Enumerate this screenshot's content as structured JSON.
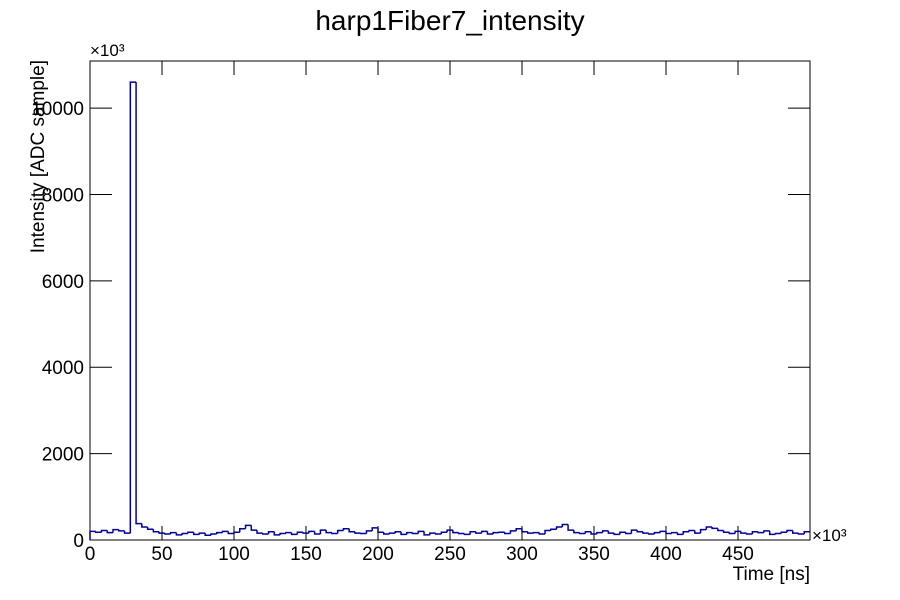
{
  "chart_data": {
    "type": "histogram",
    "title": "harp1Fiber7_intensity",
    "x_label": "Time [ns]",
    "y_label": "Intensity [ADC sample]",
    "x_multiplier": "×10³",
    "y_multiplier": "×10³",
    "color": "#000099",
    "xlim": [
      0,
      500
    ],
    "xticks": [
      0,
      50,
      100,
      150,
      200,
      250,
      300,
      350,
      400,
      450
    ],
    "ylim": [
      0,
      11090
    ],
    "yticks": [
      0,
      2000,
      4000,
      6000,
      8000,
      10000
    ],
    "bins": [
      0,
      4,
      8,
      12,
      16,
      20,
      24,
      28,
      32,
      36,
      40,
      44,
      48,
      52,
      56,
      60,
      64,
      68,
      72,
      76,
      80,
      84,
      88,
      92,
      96,
      100,
      104,
      108,
      112,
      116,
      120,
      124,
      128,
      132,
      136,
      140,
      144,
      148,
      152,
      156,
      160,
      164,
      168,
      172,
      176,
      180,
      184,
      188,
      192,
      196,
      200,
      204,
      208,
      212,
      216,
      220,
      224,
      228,
      232,
      236,
      240,
      244,
      248,
      252,
      256,
      260,
      264,
      268,
      272,
      276,
      280,
      284,
      288,
      292,
      296,
      300,
      304,
      308,
      312,
      316,
      320,
      324,
      328,
      332,
      336,
      340,
      344,
      348,
      352,
      356,
      360,
      364,
      368,
      372,
      376,
      380,
      384,
      388,
      392,
      396,
      400,
      404,
      408,
      412,
      416,
      420,
      424,
      428,
      432,
      436,
      440,
      444,
      448,
      452,
      456,
      460,
      464,
      468,
      472,
      476,
      480,
      484,
      488,
      492,
      496,
      500
    ],
    "counts": [
      200,
      180,
      220,
      170,
      240,
      210,
      160,
      10600,
      380,
      300,
      250,
      190,
      160,
      140,
      170,
      120,
      150,
      180,
      130,
      160,
      110,
      140,
      170,
      200,
      150,
      180,
      260,
      340,
      230,
      160,
      140,
      190,
      120,
      150,
      170,
      130,
      180,
      160,
      200,
      140,
      230,
      170,
      150,
      220,
      260,
      190,
      160,
      150,
      210,
      280,
      180,
      140,
      160,
      190,
      130,
      170,
      150,
      200,
      120,
      160,
      140,
      180,
      230,
      170,
      150,
      130,
      190,
      160,
      200,
      140,
      170,
      180,
      150,
      210,
      260,
      190,
      160,
      170,
      140,
      220,
      250,
      300,
      360,
      230,
      170,
      150,
      190,
      140,
      170,
      210,
      160,
      130,
      180,
      150,
      230,
      190,
      160,
      140,
      170,
      200,
      150,
      170,
      130,
      190,
      220,
      160,
      240,
      300,
      270,
      220,
      180,
      150,
      200,
      160,
      140,
      190,
      170,
      210,
      130,
      150,
      180,
      220,
      160,
      140,
      190
    ]
  }
}
